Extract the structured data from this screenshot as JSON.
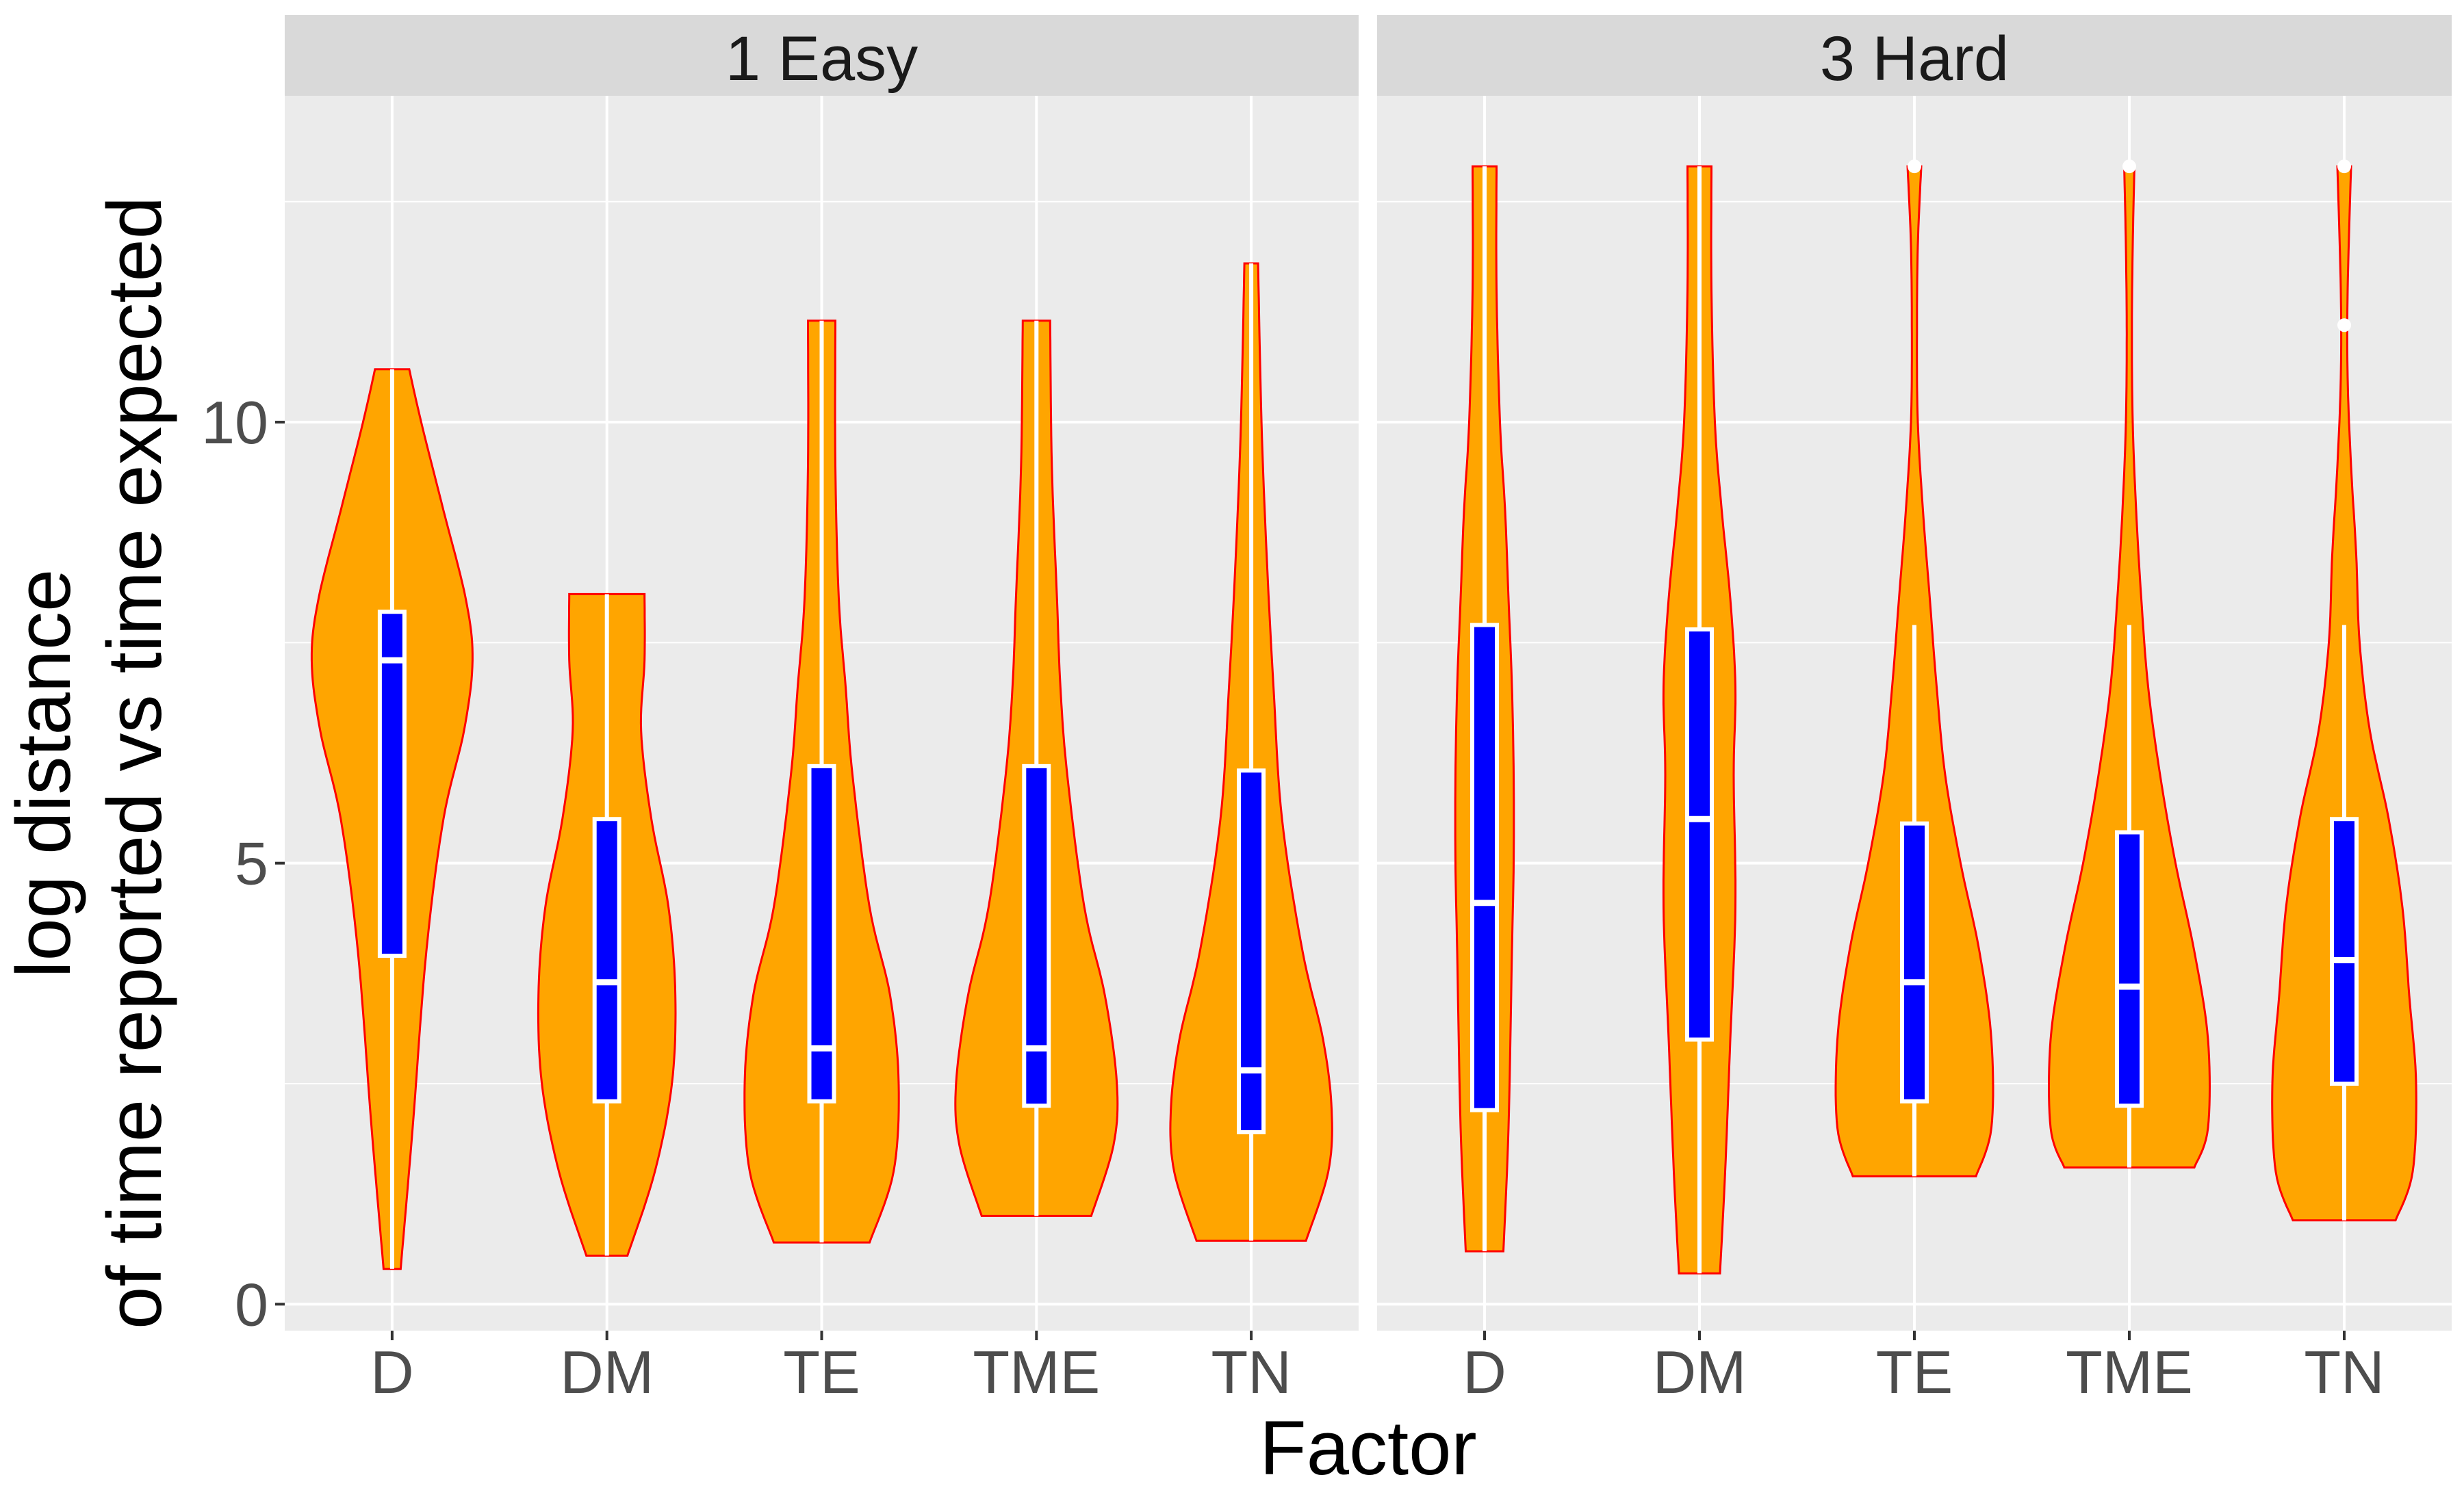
{
  "chart_data": {
    "type": "violin",
    "xlabel": "Factor",
    "ylabel_lines": [
      "log distance",
      "of time reported vs time expected"
    ],
    "ylim": [
      -0.3,
      13.7
    ],
    "y_ticks": [
      0,
      5,
      10
    ],
    "y_tick_labels": [
      "0",
      "5",
      "10"
    ],
    "grid": true,
    "colors": {
      "violin_fill": "#FFA500",
      "violin_outline": "#FF0000",
      "box_fill": "#0000FF",
      "box_outline": "#FFFFFF",
      "panel_bg": "#EBEBEB",
      "strip_bg": "#D9D9D9",
      "grid": "#FFFFFF"
    },
    "categories": [
      "D",
      "DM",
      "TE",
      "TME",
      "TN"
    ],
    "panels": [
      {
        "name": "1 Easy",
        "groups": [
          {
            "factor": "D",
            "min": 0.4,
            "max": 10.6,
            "q1": 3.95,
            "median": 7.3,
            "q3": 7.85,
            "whisker_low": 0.4,
            "whisker_high": 10.6,
            "density": [
              [
                0.4,
                0.05
              ],
              [
                2,
                0.12
              ],
              [
                4,
                0.2
              ],
              [
                5.5,
                0.3
              ],
              [
                6.5,
                0.42
              ],
              [
                7.3,
                0.47
              ],
              [
                8,
                0.43
              ],
              [
                9,
                0.3
              ],
              [
                10,
                0.17
              ],
              [
                10.6,
                0.1
              ]
            ]
          },
          {
            "factor": "DM",
            "min": 0.55,
            "max": 8.05,
            "q1": 2.3,
            "median": 3.65,
            "q3": 5.5,
            "whisker_low": 0.55,
            "whisker_high": 8.05,
            "density": [
              [
                0.55,
                0.12
              ],
              [
                1.5,
                0.28
              ],
              [
                2.5,
                0.38
              ],
              [
                3.5,
                0.4
              ],
              [
                4.5,
                0.36
              ],
              [
                5.5,
                0.26
              ],
              [
                6.5,
                0.2
              ],
              [
                7.3,
                0.22
              ],
              [
                8.05,
                0.22
              ]
            ]
          },
          {
            "factor": "TE",
            "min": 0.7,
            "max": 11.15,
            "q1": 2.3,
            "median": 2.9,
            "q3": 6.1,
            "whisker_low": 0.7,
            "whisker_high": 11.15,
            "density": [
              [
                0.7,
                0.28
              ],
              [
                1.5,
                0.42
              ],
              [
                2.5,
                0.45
              ],
              [
                3.5,
                0.4
              ],
              [
                4.5,
                0.28
              ],
              [
                6,
                0.18
              ],
              [
                7,
                0.14
              ],
              [
                8,
                0.1
              ],
              [
                9.5,
                0.08
              ],
              [
                11.15,
                0.08
              ]
            ]
          },
          {
            "factor": "TME",
            "min": 1.0,
            "max": 11.15,
            "q1": 2.25,
            "median": 2.9,
            "q3": 6.1,
            "whisker_low": 1.0,
            "whisker_high": 11.15,
            "density": [
              [
                1,
                0.32
              ],
              [
                1.8,
                0.45
              ],
              [
                2.5,
                0.47
              ],
              [
                3.5,
                0.4
              ],
              [
                4.5,
                0.28
              ],
              [
                6,
                0.18
              ],
              [
                7,
                0.14
              ],
              [
                8,
                0.12
              ],
              [
                9.5,
                0.09
              ],
              [
                11.15,
                0.08
              ]
            ]
          },
          {
            "factor": "TN",
            "min": 0.72,
            "max": 11.8,
            "q1": 1.95,
            "median": 2.65,
            "q3": 6.05,
            "whisker_low": 0.72,
            "whisker_high": 11.8,
            "density": [
              [
                0.72,
                0.32
              ],
              [
                1.5,
                0.45
              ],
              [
                2.2,
                0.47
              ],
              [
                3,
                0.42
              ],
              [
                4,
                0.3
              ],
              [
                5.5,
                0.18
              ],
              [
                7,
                0.13
              ],
              [
                8.5,
                0.09
              ],
              [
                10,
                0.06
              ],
              [
                11.8,
                0.04
              ]
            ]
          }
        ]
      },
      {
        "name": "3 Hard",
        "groups": [
          {
            "factor": "D",
            "min": 0.6,
            "max": 12.9,
            "q1": 2.2,
            "median": 4.55,
            "q3": 7.7,
            "whisker_low": 0.6,
            "whisker_high": 12.9,
            "density": [
              [
                0.6,
                0.11
              ],
              [
                2,
                0.14
              ],
              [
                4,
                0.16
              ],
              [
                5,
                0.17
              ],
              [
                6,
                0.17
              ],
              [
                7,
                0.16
              ],
              [
                8,
                0.14
              ],
              [
                9,
                0.12
              ],
              [
                10,
                0.09
              ],
              [
                11.5,
                0.07
              ],
              [
                12.9,
                0.07
              ]
            ]
          },
          {
            "factor": "DM",
            "min": 0.35,
            "max": 12.9,
            "q1": 3.0,
            "median": 5.5,
            "q3": 7.65,
            "whisker_low": 0.35,
            "whisker_high": 12.9,
            "density": [
              [
                0.35,
                0.12
              ],
              [
                1.5,
                0.15
              ],
              [
                3,
                0.18
              ],
              [
                4.5,
                0.21
              ],
              [
                6,
                0.2
              ],
              [
                7,
                0.21
              ],
              [
                8,
                0.18
              ],
              [
                9,
                0.13
              ],
              [
                10,
                0.09
              ],
              [
                11.5,
                0.07
              ],
              [
                12.9,
                0.07
              ]
            ]
          },
          {
            "factor": "TE",
            "min": 1.45,
            "max": 12.9,
            "q1": 2.3,
            "median": 3.65,
            "q3": 5.45,
            "whisker_low": 1.45,
            "whisker_high": 7.7,
            "density": [
              [
                1.45,
                0.36
              ],
              [
                2,
                0.45
              ],
              [
                3,
                0.45
              ],
              [
                4,
                0.38
              ],
              [
                5,
                0.27
              ],
              [
                6,
                0.18
              ],
              [
                7,
                0.13
              ],
              [
                8,
                0.09
              ],
              [
                9,
                0.05
              ],
              [
                10,
                0.02
              ],
              [
                11,
                0.015
              ],
              [
                12,
                0.02
              ],
              [
                12.9,
                0.04
              ]
            ]
          },
          {
            "factor": "TME",
            "min": 1.55,
            "max": 12.9,
            "q1": 2.25,
            "median": 3.6,
            "q3": 5.35,
            "whisker_low": 1.55,
            "whisker_high": 7.7,
            "density": [
              [
                1.55,
                0.38
              ],
              [
                2,
                0.46
              ],
              [
                3,
                0.46
              ],
              [
                4,
                0.38
              ],
              [
                5,
                0.27
              ],
              [
                6,
                0.18
              ],
              [
                7,
                0.11
              ],
              [
                8,
                0.07
              ],
              [
                9,
                0.04
              ],
              [
                10,
                0.02
              ],
              [
                11,
                0.015
              ],
              [
                12,
                0.02
              ],
              [
                12.9,
                0.03
              ]
            ]
          },
          {
            "factor": "TN",
            "min": 0.95,
            "max": 12.9,
            "q1": 2.5,
            "median": 3.9,
            "q3": 5.5,
            "whisker_low": 0.95,
            "whisker_high": 7.7,
            "density": [
              [
                0.95,
                0.3
              ],
              [
                1.5,
                0.4
              ],
              [
                2.5,
                0.42
              ],
              [
                3.5,
                0.38
              ],
              [
                4.5,
                0.34
              ],
              [
                5.5,
                0.26
              ],
              [
                6.5,
                0.15
              ],
              [
                7.5,
                0.09
              ],
              [
                8.5,
                0.07
              ],
              [
                9.5,
                0.04
              ],
              [
                10.5,
                0.02
              ],
              [
                11.5,
                0.02
              ],
              [
                12.9,
                0.04
              ]
            ]
          }
        ]
      }
    ],
    "outliers": [
      {
        "panel": 1,
        "factor": "TE",
        "y": 12.9
      },
      {
        "panel": 1,
        "factor": "TME",
        "y": 12.9
      },
      {
        "panel": 1,
        "factor": "TN",
        "y": 12.9
      },
      {
        "panel": 1,
        "factor": "TN",
        "y": 11.1
      }
    ]
  }
}
